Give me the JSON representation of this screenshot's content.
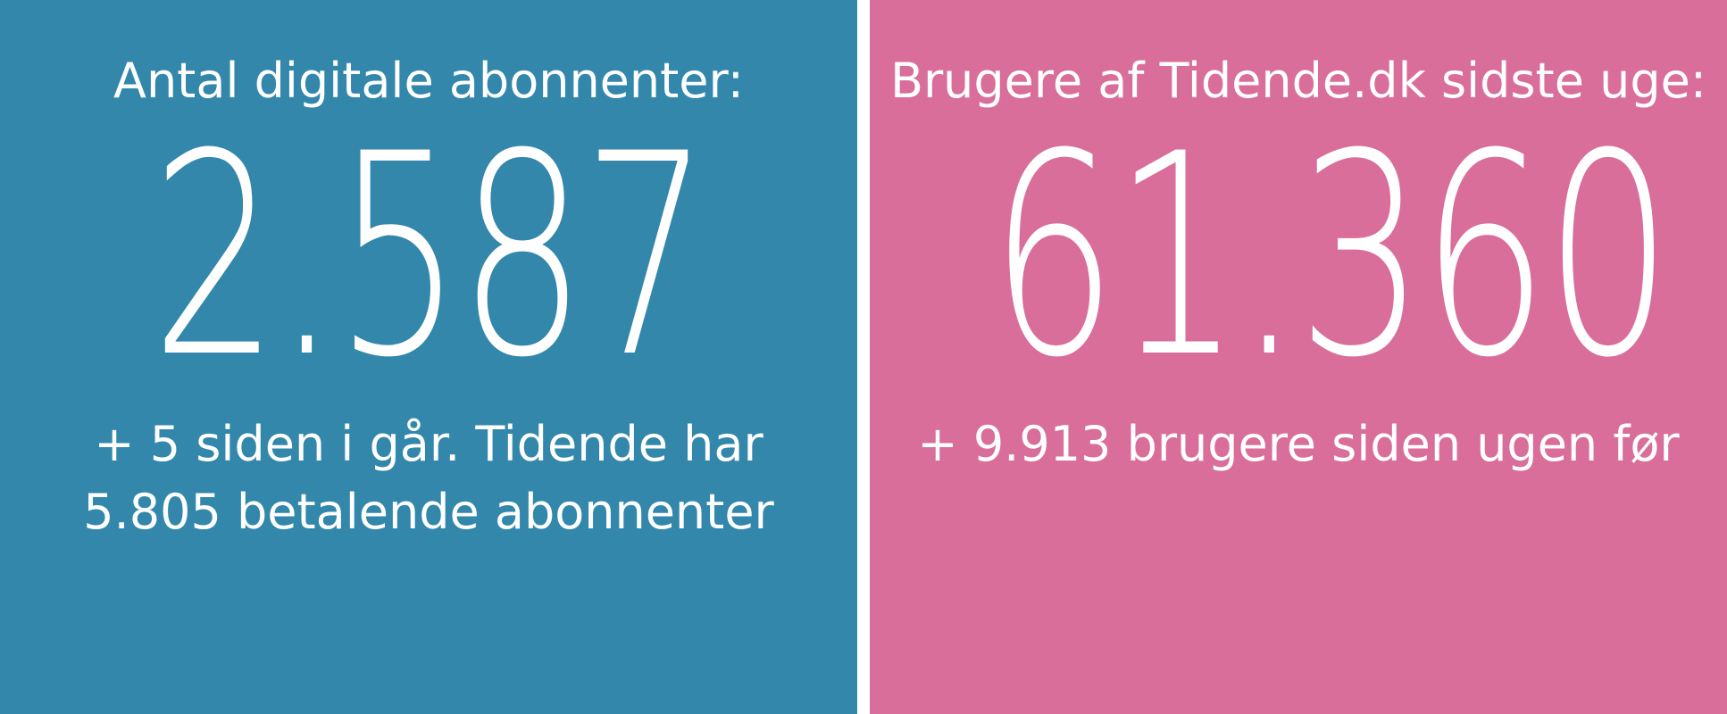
{
  "colors": {
    "left_panel": "#3287ab",
    "right_panel": "#d96e9b",
    "text": "#ffffff",
    "divider": "#ffffff"
  },
  "left": {
    "heading": "Antal digitale abonnenter:",
    "value": "2.587",
    "sub_line1": "+ 5 siden i går. Tidende har",
    "sub_line2": "5.805 betalende abonnenter"
  },
  "right": {
    "heading": "Brugere af Tidende.dk sidste uge:",
    "value": "61.360",
    "sub_line1": "+ 9.913 brugere siden ugen før"
  }
}
